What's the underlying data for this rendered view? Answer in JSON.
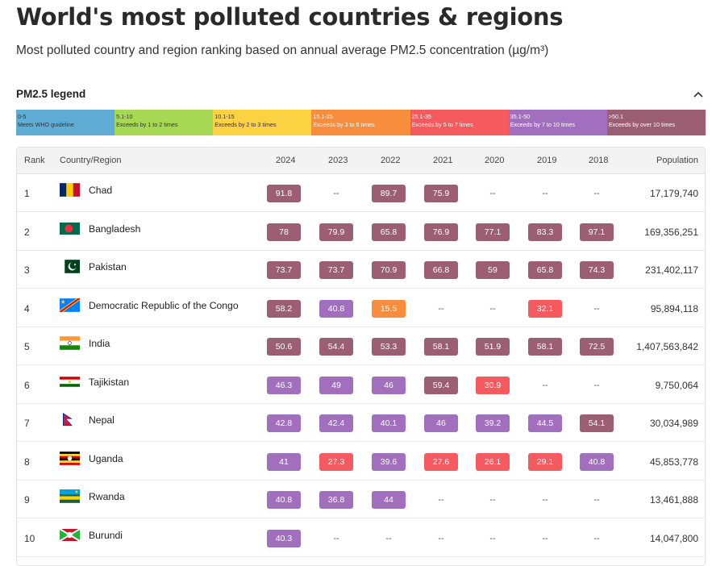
{
  "header": {
    "title": "World's most polluted countries & regions",
    "subtitle": "Most polluted country and region ranking based on annual average PM2.5 concentration (µg/m³)"
  },
  "legend": {
    "title": "PM2.5 legend",
    "toggle_icon": "chevron-up-icon",
    "segments": [
      {
        "range": "0-5",
        "desc": "Meets WHO guideline",
        "color": "#5fadd4"
      },
      {
        "range": "5.1-10",
        "desc": "Exceeds by 1 to 2 times",
        "color": "#a6d853"
      },
      {
        "range": "10.1-15",
        "desc": "Exceeds by 2 to 3 times",
        "color": "#fbd242"
      },
      {
        "range": "15.1-25",
        "desc": "Exceeds by 3 to 5 times",
        "color": "#f98d3e"
      },
      {
        "range": "25.1-35",
        "desc": "Exceeds by 5 to 7 times",
        "color": "#f55a5e"
      },
      {
        "range": "35.1-50",
        "desc": "Exceeds by 7 to 10 times",
        "color": "#a26fbe"
      },
      {
        "range": ">50.1",
        "desc": "Exceeds by over 10 times",
        "color": "#9c5e72"
      }
    ]
  },
  "table": {
    "headers": {
      "rank": "Rank",
      "country": "Country/Region",
      "years": [
        "2024",
        "2023",
        "2022",
        "2021",
        "2020",
        "2019",
        "2018"
      ],
      "population": "Population"
    },
    "rows": [
      {
        "rank": "1",
        "country": "Chad",
        "flag": "chad-flag",
        "values": [
          "91.8",
          "--",
          "89.7",
          "75.9",
          "--",
          "--",
          "--"
        ],
        "population": "17,179,740"
      },
      {
        "rank": "2",
        "country": "Bangladesh",
        "flag": "bangladesh-flag",
        "values": [
          "78",
          "79.9",
          "65.8",
          "76.9",
          "77.1",
          "83.3",
          "97.1"
        ],
        "population": "169,356,251"
      },
      {
        "rank": "3",
        "country": "Pakistan",
        "flag": "pakistan-flag",
        "values": [
          "73.7",
          "73.7",
          "70.9",
          "66.8",
          "59",
          "65.8",
          "74.3"
        ],
        "population": "231,402,117"
      },
      {
        "rank": "4",
        "country": "Democratic Republic of the Congo",
        "flag": "drc-flag",
        "values": [
          "58.2",
          "40.8",
          "15.5",
          "--",
          "--",
          "32.1",
          "--"
        ],
        "population": "95,894,118"
      },
      {
        "rank": "5",
        "country": "India",
        "flag": "india-flag",
        "values": [
          "50.6",
          "54.4",
          "53.3",
          "58.1",
          "51.9",
          "58.1",
          "72.5"
        ],
        "population": "1,407,563,842"
      },
      {
        "rank": "6",
        "country": "Tajikistan",
        "flag": "tajikistan-flag",
        "values": [
          "46.3",
          "49",
          "46",
          "59.4",
          "30.9",
          "--",
          "--"
        ],
        "population": "9,750,064"
      },
      {
        "rank": "7",
        "country": "Nepal",
        "flag": "nepal-flag",
        "values": [
          "42.8",
          "42.4",
          "40.1",
          "46",
          "39.2",
          "44.5",
          "54.1"
        ],
        "population": "30,034,989"
      },
      {
        "rank": "8",
        "country": "Uganda",
        "flag": "uganda-flag",
        "values": [
          "41",
          "27.3",
          "39.6",
          "27.6",
          "26.1",
          "29.1",
          "40.8"
        ],
        "population": "45,853,778"
      },
      {
        "rank": "9",
        "country": "Rwanda",
        "flag": "rwanda-flag",
        "values": [
          "40.8",
          "36.8",
          "44",
          "--",
          "--",
          "--",
          "--"
        ],
        "population": "13,461,888"
      },
      {
        "rank": "10",
        "country": "Burundi",
        "flag": "burundi-flag",
        "values": [
          "40.3",
          "--",
          "--",
          "--",
          "--",
          "--",
          "--"
        ],
        "population": "14,047,800"
      }
    ]
  }
}
